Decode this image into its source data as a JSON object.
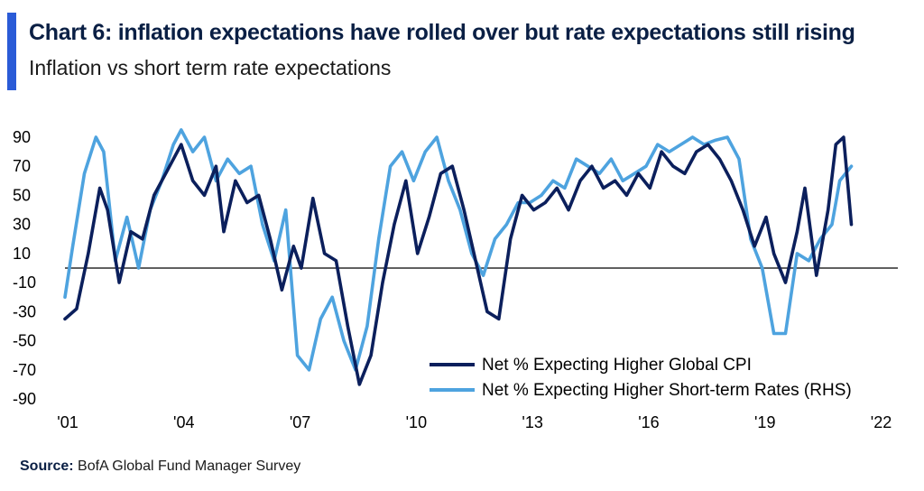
{
  "header": {
    "title": "Chart 6: inflation expectations have rolled over but rate expectations still rising",
    "subtitle": "Inflation vs short term rate expectations"
  },
  "source": {
    "label": "Source:",
    "text": "BofA Global Fund Manager Survey"
  },
  "colors": {
    "accent": "#2a5bd7",
    "cpi": "#0b1f5c",
    "rates": "#4ea3df",
    "zero_line": "#000000"
  },
  "chart_data": {
    "type": "line",
    "title": "",
    "xlabel": "",
    "ylabel": "",
    "ylim": [
      -90,
      90
    ],
    "xlim": [
      2001,
      2022.5
    ],
    "y_ticks": [
      "90",
      "70",
      "50",
      "30",
      "10",
      "-10",
      "-30",
      "-50",
      "-70",
      "-90"
    ],
    "y_tick_values": [
      90,
      70,
      50,
      30,
      10,
      -10,
      -30,
      -50,
      -70,
      -90
    ],
    "x_ticks": [
      "'01",
      "'04",
      "'07",
      "'10",
      "'13",
      "'16",
      "'19",
      "'22"
    ],
    "x_tick_values": [
      2001,
      2004,
      2007,
      2010,
      2013,
      2016,
      2019,
      2022
    ],
    "grid": false,
    "legend_position": "bottom-right",
    "series": [
      {
        "name": "Net % Expecting Higher Global CPI",
        "x": [
          2001.0,
          2001.3,
          2001.6,
          2001.9,
          2002.1,
          2002.4,
          2002.7,
          2003.0,
          2003.3,
          2003.6,
          2004.0,
          2004.3,
          2004.6,
          2004.9,
          2005.1,
          2005.4,
          2005.7,
          2006.0,
          2006.3,
          2006.6,
          2006.9,
          2007.1,
          2007.4,
          2007.7,
          2008.0,
          2008.3,
          2008.6,
          2008.9,
          2009.2,
          2009.5,
          2009.8,
          2010.1,
          2010.4,
          2010.7,
          2011.0,
          2011.3,
          2011.6,
          2011.9,
          2012.2,
          2012.5,
          2012.8,
          2013.1,
          2013.4,
          2013.7,
          2014.0,
          2014.3,
          2014.6,
          2014.9,
          2015.2,
          2015.5,
          2015.8,
          2016.1,
          2016.4,
          2016.7,
          2017.0,
          2017.3,
          2017.6,
          2017.9,
          2018.2,
          2018.5,
          2018.8,
          2019.1,
          2019.3,
          2019.6,
          2019.9,
          2020.1,
          2020.4,
          2020.7,
          2020.9,
          2021.1,
          2021.3
        ],
        "values": [
          -35,
          -28,
          10,
          55,
          40,
          -10,
          25,
          20,
          50,
          65,
          85,
          60,
          50,
          70,
          25,
          60,
          45,
          50,
          20,
          -15,
          15,
          0,
          48,
          10,
          5,
          -40,
          -80,
          -60,
          -10,
          30,
          60,
          10,
          35,
          65,
          70,
          40,
          5,
          -30,
          -35,
          20,
          50,
          40,
          45,
          55,
          40,
          60,
          70,
          55,
          60,
          50,
          65,
          55,
          80,
          70,
          65,
          80,
          85,
          75,
          60,
          40,
          15,
          35,
          10,
          -10,
          25,
          55,
          -5,
          40,
          85,
          90,
          30
        ],
        "color": "#0b1f5c"
      },
      {
        "name": "Net % Expecting Higher Short-term Rates (RHS)",
        "x": [
          2001.0,
          2001.2,
          2001.5,
          2001.8,
          2002.0,
          2002.3,
          2002.6,
          2002.9,
          2003.2,
          2003.5,
          2003.8,
          2004.0,
          2004.3,
          2004.6,
          2004.9,
          2005.2,
          2005.5,
          2005.8,
          2006.1,
          2006.4,
          2006.7,
          2007.0,
          2007.3,
          2007.6,
          2007.9,
          2008.2,
          2008.5,
          2008.8,
          2009.1,
          2009.4,
          2009.7,
          2010.0,
          2010.3,
          2010.6,
          2010.9,
          2011.2,
          2011.5,
          2011.8,
          2012.1,
          2012.4,
          2012.7,
          2013.0,
          2013.3,
          2013.6,
          2013.9,
          2014.2,
          2014.5,
          2014.8,
          2015.1,
          2015.4,
          2015.7,
          2016.0,
          2016.3,
          2016.6,
          2016.9,
          2017.2,
          2017.5,
          2017.8,
          2018.1,
          2018.4,
          2018.7,
          2019.0,
          2019.3,
          2019.6,
          2019.9,
          2020.2,
          2020.5,
          2020.8,
          2021.0,
          2021.3
        ],
        "values": [
          -20,
          15,
          65,
          90,
          80,
          5,
          35,
          0,
          40,
          60,
          85,
          95,
          80,
          90,
          60,
          75,
          65,
          70,
          30,
          5,
          40,
          -60,
          -70,
          -35,
          -20,
          -50,
          -70,
          -40,
          20,
          70,
          80,
          60,
          80,
          90,
          60,
          40,
          10,
          -5,
          20,
          30,
          45,
          45,
          50,
          60,
          55,
          75,
          70,
          65,
          75,
          60,
          65,
          70,
          85,
          80,
          85,
          90,
          85,
          88,
          90,
          75,
          20,
          0,
          -45,
          -45,
          10,
          5,
          20,
          30,
          60,
          70
        ],
        "color": "#4ea3df"
      }
    ]
  }
}
